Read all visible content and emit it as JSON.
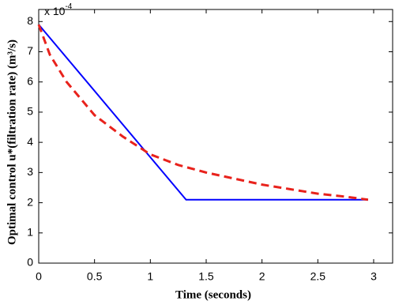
{
  "chart_data": {
    "type": "line",
    "multiplier": {
      "base": "x 10",
      "exponent": "-4"
    },
    "xlabel": "Time (seconds)",
    "ylabel": "Optimal control u*(filtration rate) (m³/s)",
    "xlim": [
      0,
      3.17
    ],
    "ylim": [
      0,
      8.4
    ],
    "xticks": [
      0,
      0.5,
      1,
      1.5,
      2,
      2.5,
      3
    ],
    "yticks": [
      0,
      1,
      2,
      3,
      4,
      5,
      6,
      7,
      8
    ],
    "series": [
      {
        "color": "#0000ff",
        "style": "solid",
        "x": [
          0,
          1.32,
          2.95
        ],
        "values": [
          7.9,
          2.1,
          2.1
        ]
      },
      {
        "color": "#e8221c",
        "style": "dashed",
        "x": [
          0,
          0.1,
          0.25,
          0.5,
          0.75,
          1,
          1.25,
          1.5,
          1.75,
          2,
          2.25,
          2.5,
          2.75,
          2.95
        ],
        "values": [
          7.9,
          6.9,
          6.0,
          4.9,
          4.2,
          3.6,
          3.25,
          3.0,
          2.8,
          2.6,
          2.45,
          2.3,
          2.2,
          2.1
        ]
      }
    ]
  }
}
